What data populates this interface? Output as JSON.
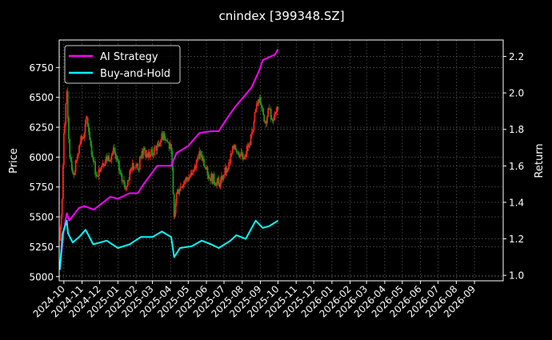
{
  "chart_data": {
    "type": "line",
    "title": "cnindex [399348.SZ]",
    "xlabel": "",
    "ylabel_left": "Price",
    "ylabel_right": "Return",
    "grid": true,
    "legend_placement": "top-left",
    "background": "#000000",
    "x_ticks": [
      "2024-10",
      "2024-11",
      "2024-12",
      "2025-01",
      "2025-02",
      "2025-03",
      "2025-04",
      "2025-05",
      "2025-06",
      "2025-07",
      "2025-08",
      "2025-09",
      "2025-10",
      "2025-11",
      "2025-12",
      "2026-01",
      "2026-02",
      "2026-03",
      "2026-04",
      "2026-05",
      "2026-06",
      "2026-07",
      "2026-08",
      "2026-09"
    ],
    "xlim": [
      "2024-09-23",
      "2026-10-20"
    ],
    "y_left": {
      "ticks": [
        5000,
        5250,
        5500,
        5750,
        6000,
        6250,
        6500,
        6750
      ],
      "ylim": [
        4965,
        6980
      ]
    },
    "y_right": {
      "ticks": [
        "1.0",
        "1.2",
        "1.4",
        "1.6",
        "1.8",
        "2.0",
        "2.2"
      ],
      "ylim": [
        0.97,
        2.29
      ]
    },
    "price": {
      "style": "candlestick",
      "up_color": "#ff2020",
      "down_color": "#1a9a1a",
      "points": [
        {
          "date": "2024-09-24",
          "close": 5300
        },
        {
          "date": "2024-09-28",
          "close": 5650
        },
        {
          "date": "2024-10-01",
          "close": 6200
        },
        {
          "date": "2024-10-06",
          "close": 6550
        },
        {
          "date": "2024-10-11",
          "close": 6000
        },
        {
          "date": "2024-10-18",
          "close": 5850
        },
        {
          "date": "2024-10-27",
          "close": 6100
        },
        {
          "date": "2024-11-05",
          "close": 6200
        },
        {
          "date": "2024-11-09",
          "close": 6330
        },
        {
          "date": "2024-11-19",
          "close": 6000
        },
        {
          "date": "2024-11-25",
          "close": 5850
        },
        {
          "date": "2024-12-06",
          "close": 5950
        },
        {
          "date": "2024-12-26",
          "close": 6050
        },
        {
          "date": "2025-01-08",
          "close": 5800
        },
        {
          "date": "2025-01-15",
          "close": 5750
        },
        {
          "date": "2025-01-26",
          "close": 5950
        },
        {
          "date": "2025-02-04",
          "close": 5900
        },
        {
          "date": "2025-02-11",
          "close": 6050
        },
        {
          "date": "2025-02-24",
          "close": 6000
        },
        {
          "date": "2025-03-09",
          "close": 6100
        },
        {
          "date": "2025-03-20",
          "close": 6200
        },
        {
          "date": "2025-04-02",
          "close": 6050
        },
        {
          "date": "2025-04-07",
          "close": 5500
        },
        {
          "date": "2025-04-11",
          "close": 5700
        },
        {
          "date": "2025-04-24",
          "close": 5800
        },
        {
          "date": "2025-05-07",
          "close": 5850
        },
        {
          "date": "2025-05-20",
          "close": 6050
        },
        {
          "date": "2025-06-03",
          "close": 5850
        },
        {
          "date": "2025-06-22",
          "close": 5780
        },
        {
          "date": "2025-07-06",
          "close": 5900
        },
        {
          "date": "2025-07-19",
          "close": 6100
        },
        {
          "date": "2025-08-01",
          "close": 6000
        },
        {
          "date": "2025-08-14",
          "close": 6100
        },
        {
          "date": "2025-08-21",
          "close": 6300
        },
        {
          "date": "2025-08-27",
          "close": 6450
        },
        {
          "date": "2025-08-31",
          "close": 6500
        },
        {
          "date": "2025-09-09",
          "close": 6300
        },
        {
          "date": "2025-09-16",
          "close": 6400
        },
        {
          "date": "2025-09-22",
          "close": 6300
        },
        {
          "date": "2025-10-01",
          "close": 6400
        }
      ]
    },
    "series": [
      {
        "name": "AI Strategy",
        "color": "#ff00ff",
        "axis": "right",
        "points": [
          {
            "date": "2024-09-24",
            "value": 1.03
          },
          {
            "date": "2024-10-01",
            "value": 1.25
          },
          {
            "date": "2024-10-06",
            "value": 1.34
          },
          {
            "date": "2024-10-10",
            "value": 1.3
          },
          {
            "date": "2024-10-27",
            "value": 1.37
          },
          {
            "date": "2024-11-05",
            "value": 1.38
          },
          {
            "date": "2024-11-21",
            "value": 1.36
          },
          {
            "date": "2024-12-19",
            "value": 1.43
          },
          {
            "date": "2025-01-01",
            "value": 1.42
          },
          {
            "date": "2025-01-21",
            "value": 1.45
          },
          {
            "date": "2025-02-04",
            "value": 1.45
          },
          {
            "date": "2025-02-14",
            "value": 1.5
          },
          {
            "date": "2025-03-09",
            "value": 1.6
          },
          {
            "date": "2025-04-02",
            "value": 1.6
          },
          {
            "date": "2025-04-11",
            "value": 1.67
          },
          {
            "date": "2025-05-01",
            "value": 1.71
          },
          {
            "date": "2025-05-20",
            "value": 1.78
          },
          {
            "date": "2025-06-09",
            "value": 1.79
          },
          {
            "date": "2025-06-22",
            "value": 1.79
          },
          {
            "date": "2025-07-06",
            "value": 1.86
          },
          {
            "date": "2025-07-19",
            "value": 1.92
          },
          {
            "date": "2025-08-04",
            "value": 1.98
          },
          {
            "date": "2025-08-17",
            "value": 2.03
          },
          {
            "date": "2025-08-31",
            "value": 2.13
          },
          {
            "date": "2025-09-05",
            "value": 2.18
          },
          {
            "date": "2025-09-26",
            "value": 2.21
          },
          {
            "date": "2025-10-01",
            "value": 2.24
          }
        ]
      },
      {
        "name": "Buy-and-Hold",
        "color": "#00ffff",
        "axis": "right",
        "points": [
          {
            "date": "2024-09-24",
            "value": 1.03
          },
          {
            "date": "2024-09-29",
            "value": 1.23
          },
          {
            "date": "2024-10-06",
            "value": 1.3
          },
          {
            "date": "2024-10-08",
            "value": 1.23
          },
          {
            "date": "2024-10-16",
            "value": 1.18
          },
          {
            "date": "2024-10-27",
            "value": 1.21
          },
          {
            "date": "2024-11-07",
            "value": 1.25
          },
          {
            "date": "2024-11-20",
            "value": 1.17
          },
          {
            "date": "2024-12-13",
            "value": 1.19
          },
          {
            "date": "2025-01-01",
            "value": 1.15
          },
          {
            "date": "2025-01-21",
            "value": 1.17
          },
          {
            "date": "2025-02-09",
            "value": 1.21
          },
          {
            "date": "2025-03-01",
            "value": 1.21
          },
          {
            "date": "2025-03-17",
            "value": 1.24
          },
          {
            "date": "2025-04-02",
            "value": 1.21
          },
          {
            "date": "2025-04-07",
            "value": 1.1
          },
          {
            "date": "2025-04-17",
            "value": 1.15
          },
          {
            "date": "2025-05-07",
            "value": 1.16
          },
          {
            "date": "2025-05-24",
            "value": 1.19
          },
          {
            "date": "2025-06-09",
            "value": 1.17
          },
          {
            "date": "2025-06-22",
            "value": 1.15
          },
          {
            "date": "2025-07-12",
            "value": 1.19
          },
          {
            "date": "2025-07-22",
            "value": 1.22
          },
          {
            "date": "2025-08-07",
            "value": 1.2
          },
          {
            "date": "2025-08-24",
            "value": 1.3
          },
          {
            "date": "2025-09-05",
            "value": 1.26
          },
          {
            "date": "2025-09-16",
            "value": 1.27
          },
          {
            "date": "2025-10-01",
            "value": 1.3
          }
        ]
      }
    ]
  }
}
